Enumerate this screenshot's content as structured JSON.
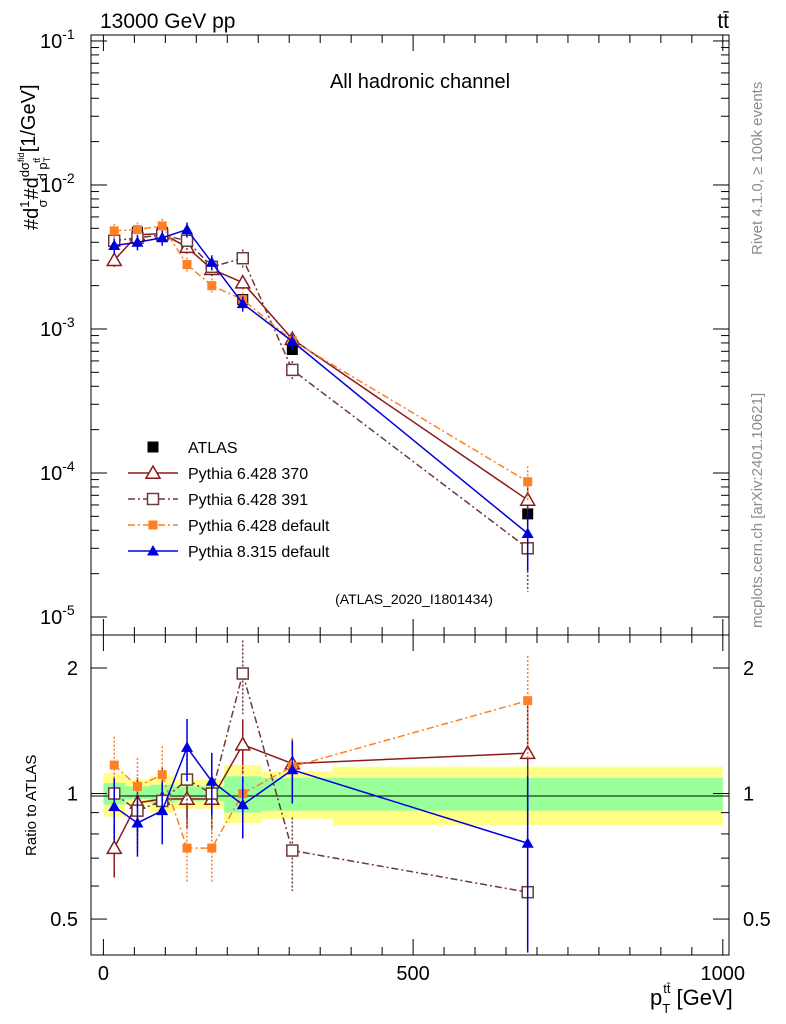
{
  "header": {
    "energy": "13000 GeV pp",
    "process": "tt̄"
  },
  "side_labels": {
    "rivet": "Rivet 4.1.0, ≥ 100k events",
    "mcplots": "mcplots.cern.ch [arXiv:2401.10621]"
  },
  "colors": {
    "atlas": "#000000",
    "p370": "#8b1a1a",
    "p391": "#6b3a3a",
    "pdefault": "#ff7f24",
    "p8": "#0000dd",
    "band_stat": "#99ff99",
    "band_total": "#ffff88"
  },
  "chart_data": [
    {
      "type": "line",
      "panel": "main",
      "title": "All hadronic channel",
      "watermark": "(ATLAS_2020_I1801434)",
      "ylabel": "#d(1/σ)#d(dσ^fid/d p_T^tt̄) [1/GeV]",
      "yscale": "log",
      "ylim": [
        7.5e-06,
        0.11
      ],
      "xlim": [
        -20,
        1010
      ],
      "ytick_labels": [
        "10^-1",
        "10^-2",
        "10^-3",
        "10^-4",
        "10^-5"
      ],
      "legend_position": "center-left",
      "series": [
        {
          "name": "ATLAS",
          "x": [
            17.5,
            55,
            95,
            135,
            175,
            225,
            305,
            685
          ],
          "y": [
            0.0041,
            0.0047,
            0.0047,
            0.0038,
            0.0027,
            0.0016,
            0.00072,
            5.2e-05
          ]
        },
        {
          "name": "Pythia 6.428 370",
          "x": [
            17.5,
            55,
            95,
            135,
            175,
            225,
            305,
            685
          ],
          "y": [
            0.003,
            0.0045,
            0.0046,
            0.0037,
            0.0026,
            0.0021,
            0.00085,
            6.5e-05
          ]
        },
        {
          "name": "Pythia 6.428 391",
          "x": [
            17.5,
            55,
            95,
            135,
            175,
            225,
            305,
            685
          ],
          "y": [
            0.0041,
            0.0043,
            0.0045,
            0.0041,
            0.0027,
            0.0031,
            0.00052,
            3e-05
          ]
        },
        {
          "name": "Pythia 6.428 default",
          "x": [
            17.5,
            55,
            95,
            135,
            175,
            225,
            305,
            685
          ],
          "y": [
            0.0048,
            0.0049,
            0.0052,
            0.0028,
            0.002,
            0.0016,
            0.00083,
            8.7e-05
          ]
        },
        {
          "name": "Pythia 8.315 default",
          "x": [
            17.5,
            55,
            95,
            135,
            175,
            225,
            305,
            685
          ],
          "y": [
            0.0038,
            0.004,
            0.0043,
            0.0049,
            0.0029,
            0.0015,
            0.00082,
            3.8e-05
          ]
        }
      ]
    },
    {
      "type": "line",
      "panel": "ratio",
      "ylabel": "Ratio to ATLAS",
      "xlabel": "p_T^tt̄ [GeV]",
      "yscale": "log",
      "ylim": [
        0.41,
        2.4
      ],
      "xlim": [
        -20,
        1010
      ],
      "x_ticks": [
        0,
        500,
        1000
      ],
      "y_ticks": [
        0.5,
        1,
        2
      ],
      "bins": [
        0,
        35,
        75,
        115,
        155,
        195,
        255,
        370,
        1000
      ],
      "band_total_lo": [
        0.88,
        0.94,
        0.9,
        0.92,
        0.92,
        0.85,
        0.87,
        0.84
      ],
      "band_total_hi": [
        1.12,
        1.08,
        1.1,
        1.08,
        1.08,
        1.17,
        1.13,
        1.16
      ],
      "band_stat_lo": [
        0.94,
        0.97,
        0.95,
        0.96,
        0.96,
        0.9,
        0.91,
        0.91
      ],
      "band_stat_hi": [
        1.06,
        1.04,
        1.05,
        1.04,
        1.04,
        1.1,
        1.09,
        1.09
      ],
      "series": [
        {
          "name": "Pythia 6.428 370",
          "x": [
            17.5,
            55,
            95,
            135,
            175,
            225,
            305,
            685
          ],
          "y": [
            0.74,
            0.95,
            0.97,
            0.97,
            0.97,
            1.31,
            1.18,
            1.25
          ]
        },
        {
          "name": "Pythia 6.428 391",
          "x": [
            17.5,
            55,
            95,
            135,
            175,
            225,
            305,
            685
          ],
          "y": [
            1.0,
            0.91,
            0.96,
            1.08,
            1.0,
            1.94,
            0.73,
            0.58
          ]
        },
        {
          "name": "Pythia 6.428 default",
          "x": [
            17.5,
            55,
            95,
            135,
            175,
            225,
            305,
            685
          ],
          "y": [
            1.17,
            1.04,
            1.11,
            0.74,
            0.74,
            1.0,
            1.16,
            1.67
          ]
        },
        {
          "name": "Pythia 8.315 default",
          "x": [
            17.5,
            55,
            95,
            135,
            175,
            225,
            305,
            685
          ],
          "y": [
            0.93,
            0.85,
            0.91,
            1.29,
            1.07,
            0.94,
            1.14,
            0.76
          ]
        }
      ]
    }
  ]
}
